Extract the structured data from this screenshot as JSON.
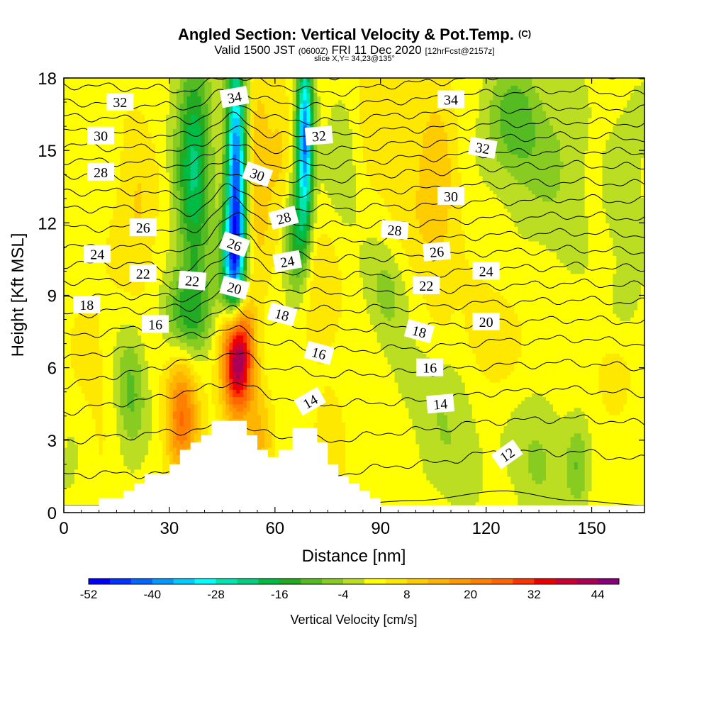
{
  "title": {
    "main": "Angled Section: Vertical Velocity & Pot.Temp.",
    "main_suffix": "(C)",
    "valid_prefix": "Valid 1500 JST",
    "valid_small": "(0600Z)",
    "valid_date": "FRI 11 Dec 2020",
    "valid_fcst": "[12hrFcst@2157z]",
    "slice": "slice X,Y= 34,23@135°"
  },
  "chart_data": {
    "type": "heatmap",
    "xlabel": "Distance [nm]",
    "ylabel": "Height [Kft MSL]",
    "xlim": [
      0,
      165
    ],
    "ylim": [
      0,
      18
    ],
    "x_ticks": [
      "0",
      "30",
      "60",
      "90",
      "120",
      "150"
    ],
    "y_ticks": [
      "0",
      "3",
      "6",
      "9",
      "12",
      "15",
      "18"
    ],
    "x_tick_values": [
      0,
      30,
      60,
      90,
      120,
      150
    ],
    "y_tick_values": [
      0,
      3,
      6,
      9,
      12,
      15,
      18
    ],
    "colorbar": {
      "label": "Vertical Velocity [cm/s]",
      "min": -52,
      "max": 48,
      "step": 4,
      "tick_labels": [
        "-52",
        "-40",
        "-28",
        "-16",
        "-4",
        "8",
        "20",
        "32",
        "44"
      ],
      "tick_values": [
        -52,
        -40,
        -28,
        -16,
        -4,
        8,
        20,
        32,
        44
      ],
      "colors": [
        "#0000ff",
        "#0033ff",
        "#0066ff",
        "#0099ff",
        "#00ccff",
        "#00ffff",
        "#00e6b0",
        "#00d080",
        "#00bb44",
        "#22aa22",
        "#55bb22",
        "#88cc22",
        "#bbdd22",
        "#ffff00",
        "#ffe800",
        "#ffcc00",
        "#ffb400",
        "#ff9900",
        "#ff7f00",
        "#ff6600",
        "#ff3300",
        "#ee0000",
        "#cc0033",
        "#aa0055",
        "#880077"
      ]
    },
    "velocity_cells": [
      {
        "x": 37,
        "z": 14.5,
        "sx": 3.5,
        "sz": 3.6,
        "v": -22
      },
      {
        "x": 49,
        "z": 14.0,
        "sx": 2.0,
        "sz": 3.4,
        "v": -46
      },
      {
        "x": 48,
        "z": 10.2,
        "sx": 2.4,
        "sz": 1.6,
        "v": -28
      },
      {
        "x": 68.5,
        "z": 15.5,
        "sx": 1.6,
        "sz": 2.4,
        "v": -42
      },
      {
        "x": 66,
        "z": 11.5,
        "sx": 2.4,
        "sz": 1.8,
        "v": -16
      },
      {
        "x": 35,
        "z": 8.2,
        "sx": 5,
        "sz": 1.3,
        "v": -14
      },
      {
        "x": 49.5,
        "z": 6.5,
        "sx": 3.0,
        "sz": 1.7,
        "v": 46
      },
      {
        "x": 55,
        "z": 14,
        "sx": 3,
        "sz": 3,
        "v": 9
      },
      {
        "x": 62,
        "z": 15,
        "sx": 2.5,
        "sz": 2.5,
        "v": 6
      },
      {
        "x": 33.5,
        "z": 4.0,
        "sx": 3.2,
        "sz": 1.8,
        "v": 22
      },
      {
        "x": 19,
        "z": 5.0,
        "sx": 3.0,
        "sz": 1.8,
        "v": -11
      },
      {
        "x": 21,
        "z": 13,
        "sx": 4,
        "sz": 3,
        "v": 6
      },
      {
        "x": 7,
        "z": 5,
        "sx": 5,
        "sz": 4,
        "v": 4
      },
      {
        "x": 3,
        "z": 2.2,
        "sx": 4,
        "sz": 2,
        "v": -5
      },
      {
        "x": 92,
        "z": 9.2,
        "sx": 4,
        "sz": 1.5,
        "v": -8
      },
      {
        "x": 87,
        "z": 16.5,
        "sx": 6,
        "sz": 2,
        "v": 6
      },
      {
        "x": 80,
        "z": 15.5,
        "sx": 4,
        "sz": 2.5,
        "v": -6
      },
      {
        "x": 106,
        "z": 14,
        "sx": 4,
        "sz": 4,
        "v": 8
      },
      {
        "x": 97,
        "z": 12,
        "sx": 5,
        "sz": 2,
        "v": 4
      },
      {
        "x": 128,
        "z": 16.3,
        "sx": 5.5,
        "sz": 1.8,
        "v": -12
      },
      {
        "x": 140,
        "z": 14.5,
        "sx": 7,
        "sz": 2.5,
        "v": -6
      },
      {
        "x": 105,
        "z": 5,
        "sx": 8,
        "sz": 1.5,
        "v": -5
      },
      {
        "x": 135,
        "z": 2.5,
        "sx": 5,
        "sz": 1.8,
        "v": -7
      },
      {
        "x": 146,
        "z": 1.8,
        "sx": 2.5,
        "sz": 1.3,
        "v": -10
      },
      {
        "x": 110,
        "z": 2,
        "sx": 6,
        "sz": 1.5,
        "v": -5
      },
      {
        "x": 157,
        "z": 5.8,
        "sx": 4,
        "sz": 1.2,
        "v": 6
      },
      {
        "x": 120,
        "z": 7,
        "sx": 6,
        "sz": 1.5,
        "v": 5
      },
      {
        "x": 75,
        "z": 2,
        "sx": 4,
        "sz": 2,
        "v": 5
      },
      {
        "x": 56,
        "z": 3,
        "sx": 2.5,
        "sz": 1.5,
        "v": 9
      },
      {
        "x": 160,
        "z": 12,
        "sx": 5,
        "sz": 4,
        "v": -4
      },
      {
        "x": 73,
        "z": 9,
        "sx": 4,
        "sz": 2,
        "v": 5
      }
    ],
    "terrain": [
      [
        0,
        0.3
      ],
      [
        10,
        0.3
      ],
      [
        10,
        0.6
      ],
      [
        17,
        0.6
      ],
      [
        17,
        0.9
      ],
      [
        20,
        0.9
      ],
      [
        20,
        1.2
      ],
      [
        23,
        1.2
      ],
      [
        23,
        1.6
      ],
      [
        30,
        1.6
      ],
      [
        30,
        2.0
      ],
      [
        33,
        2.0
      ],
      [
        33,
        2.6
      ],
      [
        36,
        2.6
      ],
      [
        36,
        2.9
      ],
      [
        39,
        2.9
      ],
      [
        39,
        3.2
      ],
      [
        42,
        3.2
      ],
      [
        42,
        3.8
      ],
      [
        52,
        3.8
      ],
      [
        52,
        3.2
      ],
      [
        55,
        3.2
      ],
      [
        55,
        2.6
      ],
      [
        58,
        2.6
      ],
      [
        58,
        2.3
      ],
      [
        61,
        2.3
      ],
      [
        61,
        2.6
      ],
      [
        65,
        2.6
      ],
      [
        65,
        3.5
      ],
      [
        72,
        3.5
      ],
      [
        72,
        2.9
      ],
      [
        75,
        2.9
      ],
      [
        75,
        2.0
      ],
      [
        78,
        2.0
      ],
      [
        78,
        1.5
      ],
      [
        81,
        1.5
      ],
      [
        81,
        1.2
      ],
      [
        84,
        1.2
      ],
      [
        84,
        0.9
      ],
      [
        87,
        0.9
      ],
      [
        87,
        0.6
      ],
      [
        90,
        0.6
      ],
      [
        90,
        0.3
      ],
      [
        165,
        0.3
      ]
    ],
    "theta_levels": [
      11,
      12,
      13,
      14,
      15,
      16,
      17,
      18,
      19,
      20,
      21,
      22,
      23,
      24,
      25,
      26,
      27,
      28,
      29,
      30,
      31,
      32,
      33,
      34,
      35
    ],
    "theta_profile": [
      {
        "x": 0,
        "z": [
          0.0,
          0.3,
          1.6,
          3.0,
          4.2,
          5.3,
          6.4,
          7.3,
          8.2,
          8.9,
          9.6,
          10.3,
          11.0,
          11.8,
          12.6,
          13.3,
          14.0,
          14.6,
          15.2,
          15.8,
          16.4,
          17.0,
          17.7,
          18.4,
          19.2
        ]
      },
      {
        "x": 20,
        "z": [
          0.0,
          0.3,
          1.6,
          3.2,
          4.6,
          5.8,
          6.8,
          7.6,
          8.4,
          9.0,
          9.6,
          10.3,
          11.0,
          11.8,
          12.6,
          13.3,
          13.9,
          14.5,
          15.1,
          15.7,
          16.3,
          16.9,
          17.6,
          18.3,
          19.0
        ]
      },
      {
        "x": 35,
        "z": [
          0.0,
          0.3,
          1.6,
          3.4,
          5.0,
          6.3,
          7.3,
          8.0,
          8.5,
          8.9,
          9.4,
          10.0,
          10.8,
          11.6,
          12.4,
          13.1,
          13.8,
          14.4,
          15.0,
          15.6,
          16.2,
          16.8,
          17.5,
          18.2,
          19.0
        ]
      },
      {
        "x": 48,
        "z": [
          0.0,
          0.3,
          1.6,
          3.6,
          5.4,
          6.6,
          7.6,
          8.4,
          9.2,
          10.0,
          10.8,
          11.6,
          12.3,
          12.9,
          13.5,
          14.1,
          14.7,
          15.3,
          15.9,
          16.4,
          17.0,
          17.5,
          18.1,
          18.7,
          19.4
        ]
      },
      {
        "x": 60,
        "z": [
          0.0,
          0.3,
          1.6,
          3.2,
          4.8,
          6.0,
          7.0,
          7.8,
          8.6,
          9.3,
          10.0,
          10.7,
          11.4,
          12.0,
          12.6,
          13.2,
          13.8,
          14.4,
          15.0,
          15.6,
          16.3,
          17.0,
          17.7,
          18.4,
          19.2
        ]
      },
      {
        "x": 75,
        "z": [
          0.0,
          0.3,
          1.6,
          3.0,
          4.5,
          5.7,
          6.7,
          7.6,
          8.4,
          9.1,
          9.8,
          10.5,
          11.2,
          11.9,
          12.6,
          13.2,
          13.8,
          14.4,
          15.0,
          15.6,
          16.2,
          16.8,
          17.4,
          18.1,
          18.8
        ]
      },
      {
        "x": 100,
        "z": [
          0.0,
          0.5,
          2.0,
          3.4,
          4.6,
          5.8,
          6.8,
          7.7,
          8.5,
          9.2,
          9.9,
          10.6,
          11.3,
          12.0,
          12.7,
          13.4,
          14.1,
          14.7,
          15.3,
          15.9,
          16.5,
          17.1,
          17.8,
          18.5,
          19.2
        ]
      },
      {
        "x": 125,
        "z": [
          0.0,
          0.9,
          2.5,
          3.8,
          5.0,
          6.1,
          7.1,
          7.9,
          8.7,
          9.4,
          10.1,
          10.8,
          11.5,
          12.2,
          12.9,
          13.6,
          14.3,
          14.9,
          15.5,
          16.1,
          16.7,
          17.4,
          18.1,
          18.8,
          19.5
        ]
      },
      {
        "x": 145,
        "z": [
          0.0,
          0.5,
          2.5,
          3.9,
          5.1,
          6.2,
          7.2,
          8.0,
          8.8,
          9.5,
          10.2,
          10.9,
          11.6,
          12.3,
          13.0,
          13.7,
          14.4,
          15.0,
          15.6,
          16.2,
          16.8,
          17.5,
          18.2,
          18.9,
          19.6
        ]
      },
      {
        "x": 165,
        "z": [
          0.0,
          0.3,
          2.2,
          3.7,
          4.9,
          6.0,
          7.0,
          7.9,
          8.7,
          9.4,
          10.1,
          10.8,
          11.5,
          12.2,
          12.9,
          13.6,
          14.3,
          14.9,
          15.5,
          16.1,
          16.7,
          17.3,
          18.0,
          18.7,
          19.4
        ]
      }
    ],
    "contour_labels": [
      {
        "text": "32",
        "x": 16,
        "z": 17.0,
        "angle": 0
      },
      {
        "text": "34",
        "x": 48.5,
        "z": 17.2,
        "angle": -10
      },
      {
        "text": "34",
        "x": 110,
        "z": 17.1,
        "angle": 0
      },
      {
        "text": "30",
        "x": 10.5,
        "z": 15.6,
        "angle": 0
      },
      {
        "text": "32",
        "x": 72.5,
        "z": 15.6,
        "angle": -5
      },
      {
        "text": "32",
        "x": 119,
        "z": 15.1,
        "angle": 10
      },
      {
        "text": "28",
        "x": 10.5,
        "z": 14.1,
        "angle": 0
      },
      {
        "text": "30",
        "x": 55,
        "z": 14.0,
        "angle": 20
      },
      {
        "text": "30",
        "x": 110,
        "z": 13.1,
        "angle": 0
      },
      {
        "text": "26",
        "x": 22.5,
        "z": 11.8,
        "angle": 0
      },
      {
        "text": "28",
        "x": 62.5,
        "z": 12.2,
        "angle": -15
      },
      {
        "text": "28",
        "x": 94,
        "z": 11.7,
        "angle": 5
      },
      {
        "text": "26",
        "x": 48.5,
        "z": 11.1,
        "angle": 20
      },
      {
        "text": "24",
        "x": 9.5,
        "z": 10.7,
        "angle": 0
      },
      {
        "text": "26",
        "x": 106,
        "z": 10.8,
        "angle": -5
      },
      {
        "text": "22",
        "x": 22.5,
        "z": 9.9,
        "angle": 0
      },
      {
        "text": "22",
        "x": 36.5,
        "z": 9.6,
        "angle": 5
      },
      {
        "text": "24",
        "x": 63.5,
        "z": 10.4,
        "angle": -10
      },
      {
        "text": "24",
        "x": 120,
        "z": 10.0,
        "angle": 0
      },
      {
        "text": "20",
        "x": 48.5,
        "z": 9.3,
        "angle": 15
      },
      {
        "text": "22",
        "x": 103,
        "z": 9.4,
        "angle": 0
      },
      {
        "text": "18",
        "x": 6.5,
        "z": 8.6,
        "angle": 0
      },
      {
        "text": "18",
        "x": 62,
        "z": 8.2,
        "angle": 15
      },
      {
        "text": "20",
        "x": 120,
        "z": 7.9,
        "angle": 0
      },
      {
        "text": "16",
        "x": 26,
        "z": 7.8,
        "angle": 0
      },
      {
        "text": "18",
        "x": 101,
        "z": 7.5,
        "angle": 15
      },
      {
        "text": "16",
        "x": 72.5,
        "z": 6.6,
        "angle": 15
      },
      {
        "text": "16",
        "x": 104,
        "z": 6.0,
        "angle": 0
      },
      {
        "text": "14",
        "x": 70,
        "z": 4.6,
        "angle": -30
      },
      {
        "text": "14",
        "x": 107,
        "z": 4.5,
        "angle": -5
      },
      {
        "text": "12",
        "x": 126,
        "z": 2.4,
        "angle": -35
      }
    ]
  }
}
